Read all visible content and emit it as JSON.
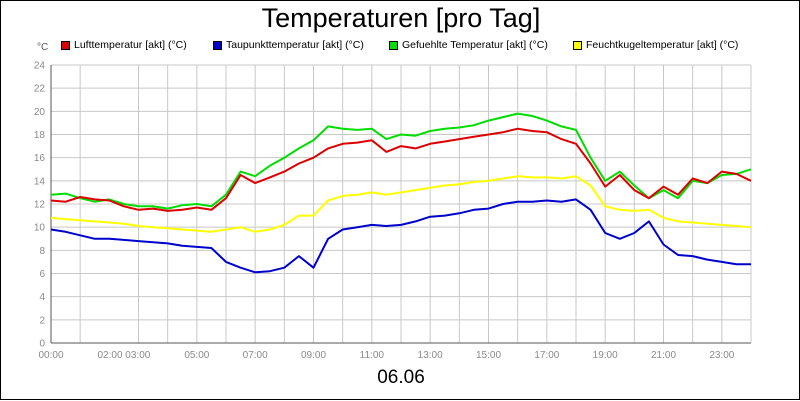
{
  "chart_data": {
    "type": "line",
    "title": "Temperaturen [pro Tag]",
    "xlabel": "06.06",
    "ylabel": "°C",
    "ylim": [
      0,
      24
    ],
    "xlim": [
      0,
      24
    ],
    "grid": true,
    "legend_position": "top",
    "y_ticks": [
      0,
      2,
      4,
      6,
      8,
      10,
      12,
      14,
      16,
      18,
      20,
      22,
      24
    ],
    "x_ticks": [
      {
        "x": 0,
        "label": "00:00"
      },
      {
        "x": 2.5,
        "label": "02:00 03:00"
      },
      {
        "x": 5,
        "label": "05:00"
      },
      {
        "x": 7,
        "label": "07:00"
      },
      {
        "x": 9,
        "label": "09:00"
      },
      {
        "x": 11,
        "label": "11:00"
      },
      {
        "x": 13,
        "label": "13:00"
      },
      {
        "x": 15,
        "label": "15:00"
      },
      {
        "x": 17,
        "label": "17:00"
      },
      {
        "x": 19,
        "label": "19:00"
      },
      {
        "x": 21,
        "label": "21:00"
      },
      {
        "x": 23,
        "label": "23:00"
      }
    ],
    "x_minor_ticks": [
      1,
      3,
      4,
      6,
      8,
      10,
      12,
      14,
      16,
      18,
      20,
      22
    ],
    "series": [
      {
        "name": "Lufttemperatur [akt] (°C)",
        "color": "#dd0000",
        "points": [
          [
            0,
            12.3
          ],
          [
            0.5,
            12.2
          ],
          [
            1,
            12.6
          ],
          [
            1.5,
            12.4
          ],
          [
            2,
            12.3
          ],
          [
            2.5,
            11.8
          ],
          [
            3,
            11.5
          ],
          [
            3.5,
            11.6
          ],
          [
            4,
            11.4
          ],
          [
            4.5,
            11.5
          ],
          [
            5,
            11.7
          ],
          [
            5.5,
            11.5
          ],
          [
            6,
            12.5
          ],
          [
            6.5,
            14.5
          ],
          [
            7,
            13.8
          ],
          [
            7.5,
            14.3
          ],
          [
            8,
            14.8
          ],
          [
            8.5,
            15.5
          ],
          [
            9,
            16
          ],
          [
            9.5,
            16.8
          ],
          [
            10,
            17.2
          ],
          [
            10.5,
            17.3
          ],
          [
            11,
            17.5
          ],
          [
            11.5,
            16.5
          ],
          [
            12,
            17
          ],
          [
            12.5,
            16.8
          ],
          [
            13,
            17.2
          ],
          [
            13.5,
            17.4
          ],
          [
            14,
            17.6
          ],
          [
            14.5,
            17.8
          ],
          [
            15,
            18
          ],
          [
            15.5,
            18.2
          ],
          [
            16,
            18.5
          ],
          [
            16.5,
            18.3
          ],
          [
            17,
            18.2
          ],
          [
            17.5,
            17.6
          ],
          [
            18,
            17.2
          ],
          [
            18.5,
            15.5
          ],
          [
            19,
            13.5
          ],
          [
            19.5,
            14.5
          ],
          [
            20,
            13.2
          ],
          [
            20.5,
            12.5
          ],
          [
            21,
            13.5
          ],
          [
            21.5,
            12.8
          ],
          [
            22,
            14.2
          ],
          [
            22.5,
            13.8
          ],
          [
            23,
            14.8
          ],
          [
            23.5,
            14.6
          ],
          [
            24,
            14
          ]
        ]
      },
      {
        "name": "Taupunkttemperatur [akt] (°C)",
        "color": "#0000cc",
        "points": [
          [
            0,
            9.8
          ],
          [
            0.5,
            9.6
          ],
          [
            1,
            9.3
          ],
          [
            1.5,
            9
          ],
          [
            2,
            9
          ],
          [
            2.5,
            8.9
          ],
          [
            3,
            8.8
          ],
          [
            3.5,
            8.7
          ],
          [
            4,
            8.6
          ],
          [
            4.5,
            8.4
          ],
          [
            5,
            8.3
          ],
          [
            5.5,
            8.2
          ],
          [
            6,
            7
          ],
          [
            6.5,
            6.5
          ],
          [
            7,
            6.1
          ],
          [
            7.5,
            6.2
          ],
          [
            8,
            6.5
          ],
          [
            8.5,
            7.5
          ],
          [
            9,
            6.5
          ],
          [
            9.5,
            9
          ],
          [
            10,
            9.8
          ],
          [
            10.5,
            10
          ],
          [
            11,
            10.2
          ],
          [
            11.5,
            10.1
          ],
          [
            12,
            10.2
          ],
          [
            12.5,
            10.5
          ],
          [
            13,
            10.9
          ],
          [
            13.5,
            11
          ],
          [
            14,
            11.2
          ],
          [
            14.5,
            11.5
          ],
          [
            15,
            11.6
          ],
          [
            15.5,
            12
          ],
          [
            16,
            12.2
          ],
          [
            16.5,
            12.2
          ],
          [
            17,
            12.3
          ],
          [
            17.5,
            12.2
          ],
          [
            18,
            12.4
          ],
          [
            18.5,
            11.5
          ],
          [
            19,
            9.5
          ],
          [
            19.5,
            9
          ],
          [
            20,
            9.5
          ],
          [
            20.5,
            10.5
          ],
          [
            21,
            8.5
          ],
          [
            21.5,
            7.6
          ],
          [
            22,
            7.5
          ],
          [
            22.5,
            7.2
          ],
          [
            23,
            7
          ],
          [
            23.5,
            6.8
          ],
          [
            24,
            6.8
          ]
        ]
      },
      {
        "name": "Gefuehlte Temperatur [akt] (°C)",
        "color": "#00dd00",
        "points": [
          [
            0,
            12.8
          ],
          [
            0.5,
            12.9
          ],
          [
            1,
            12.5
          ],
          [
            1.5,
            12.2
          ],
          [
            2,
            12.4
          ],
          [
            2.5,
            12
          ],
          [
            3,
            11.8
          ],
          [
            3.5,
            11.8
          ],
          [
            4,
            11.6
          ],
          [
            4.5,
            11.9
          ],
          [
            5,
            12
          ],
          [
            5.5,
            11.8
          ],
          [
            6,
            12.8
          ],
          [
            6.5,
            14.8
          ],
          [
            7,
            14.4
          ],
          [
            7.5,
            15.3
          ],
          [
            8,
            16
          ],
          [
            8.5,
            16.8
          ],
          [
            9,
            17.5
          ],
          [
            9.5,
            18.7
          ],
          [
            10,
            18.5
          ],
          [
            10.5,
            18.4
          ],
          [
            11,
            18.5
          ],
          [
            11.5,
            17.6
          ],
          [
            12,
            18
          ],
          [
            12.5,
            17.9
          ],
          [
            13,
            18.3
          ],
          [
            13.5,
            18.5
          ],
          [
            14,
            18.6
          ],
          [
            14.5,
            18.8
          ],
          [
            15,
            19.2
          ],
          [
            15.5,
            19.5
          ],
          [
            16,
            19.8
          ],
          [
            16.5,
            19.6
          ],
          [
            17,
            19.2
          ],
          [
            17.5,
            18.7
          ],
          [
            18,
            18.4
          ],
          [
            18.5,
            16
          ],
          [
            19,
            14
          ],
          [
            19.5,
            14.8
          ],
          [
            20,
            13.6
          ],
          [
            20.5,
            12.5
          ],
          [
            21,
            13.2
          ],
          [
            21.5,
            12.5
          ],
          [
            22,
            14
          ],
          [
            22.5,
            13.8
          ],
          [
            23,
            14.5
          ],
          [
            23.5,
            14.6
          ],
          [
            24,
            15
          ]
        ]
      },
      {
        "name": "Feuchtkugeltemperatur [akt] (°C)",
        "color": "#ffff00",
        "points": [
          [
            0,
            10.8
          ],
          [
            0.5,
            10.7
          ],
          [
            1,
            10.6
          ],
          [
            1.5,
            10.5
          ],
          [
            2,
            10.4
          ],
          [
            2.5,
            10.3
          ],
          [
            3,
            10.1
          ],
          [
            3.5,
            10
          ],
          [
            4,
            9.9
          ],
          [
            4.5,
            9.8
          ],
          [
            5,
            9.7
          ],
          [
            5.5,
            9.6
          ],
          [
            6,
            9.8
          ],
          [
            6.5,
            10
          ],
          [
            7,
            9.6
          ],
          [
            7.5,
            9.8
          ],
          [
            8,
            10.2
          ],
          [
            8.5,
            11
          ],
          [
            9,
            11
          ],
          [
            9.5,
            12.3
          ],
          [
            10,
            12.7
          ],
          [
            10.5,
            12.8
          ],
          [
            11,
            13
          ],
          [
            11.5,
            12.8
          ],
          [
            12,
            13
          ],
          [
            12.5,
            13.2
          ],
          [
            13,
            13.4
          ],
          [
            13.5,
            13.6
          ],
          [
            14,
            13.7
          ],
          [
            14.5,
            13.9
          ],
          [
            15,
            14
          ],
          [
            15.5,
            14.2
          ],
          [
            16,
            14.4
          ],
          [
            16.5,
            14.3
          ],
          [
            17,
            14.3
          ],
          [
            17.5,
            14.2
          ],
          [
            18,
            14.4
          ],
          [
            18.5,
            13.6
          ],
          [
            19,
            11.8
          ],
          [
            19.5,
            11.5
          ],
          [
            20,
            11.4
          ],
          [
            20.5,
            11.5
          ],
          [
            21,
            10.8
          ],
          [
            21.5,
            10.5
          ],
          [
            22,
            10.4
          ],
          [
            22.5,
            10.3
          ],
          [
            23,
            10.2
          ],
          [
            23.5,
            10.1
          ],
          [
            24,
            10
          ]
        ]
      }
    ]
  }
}
